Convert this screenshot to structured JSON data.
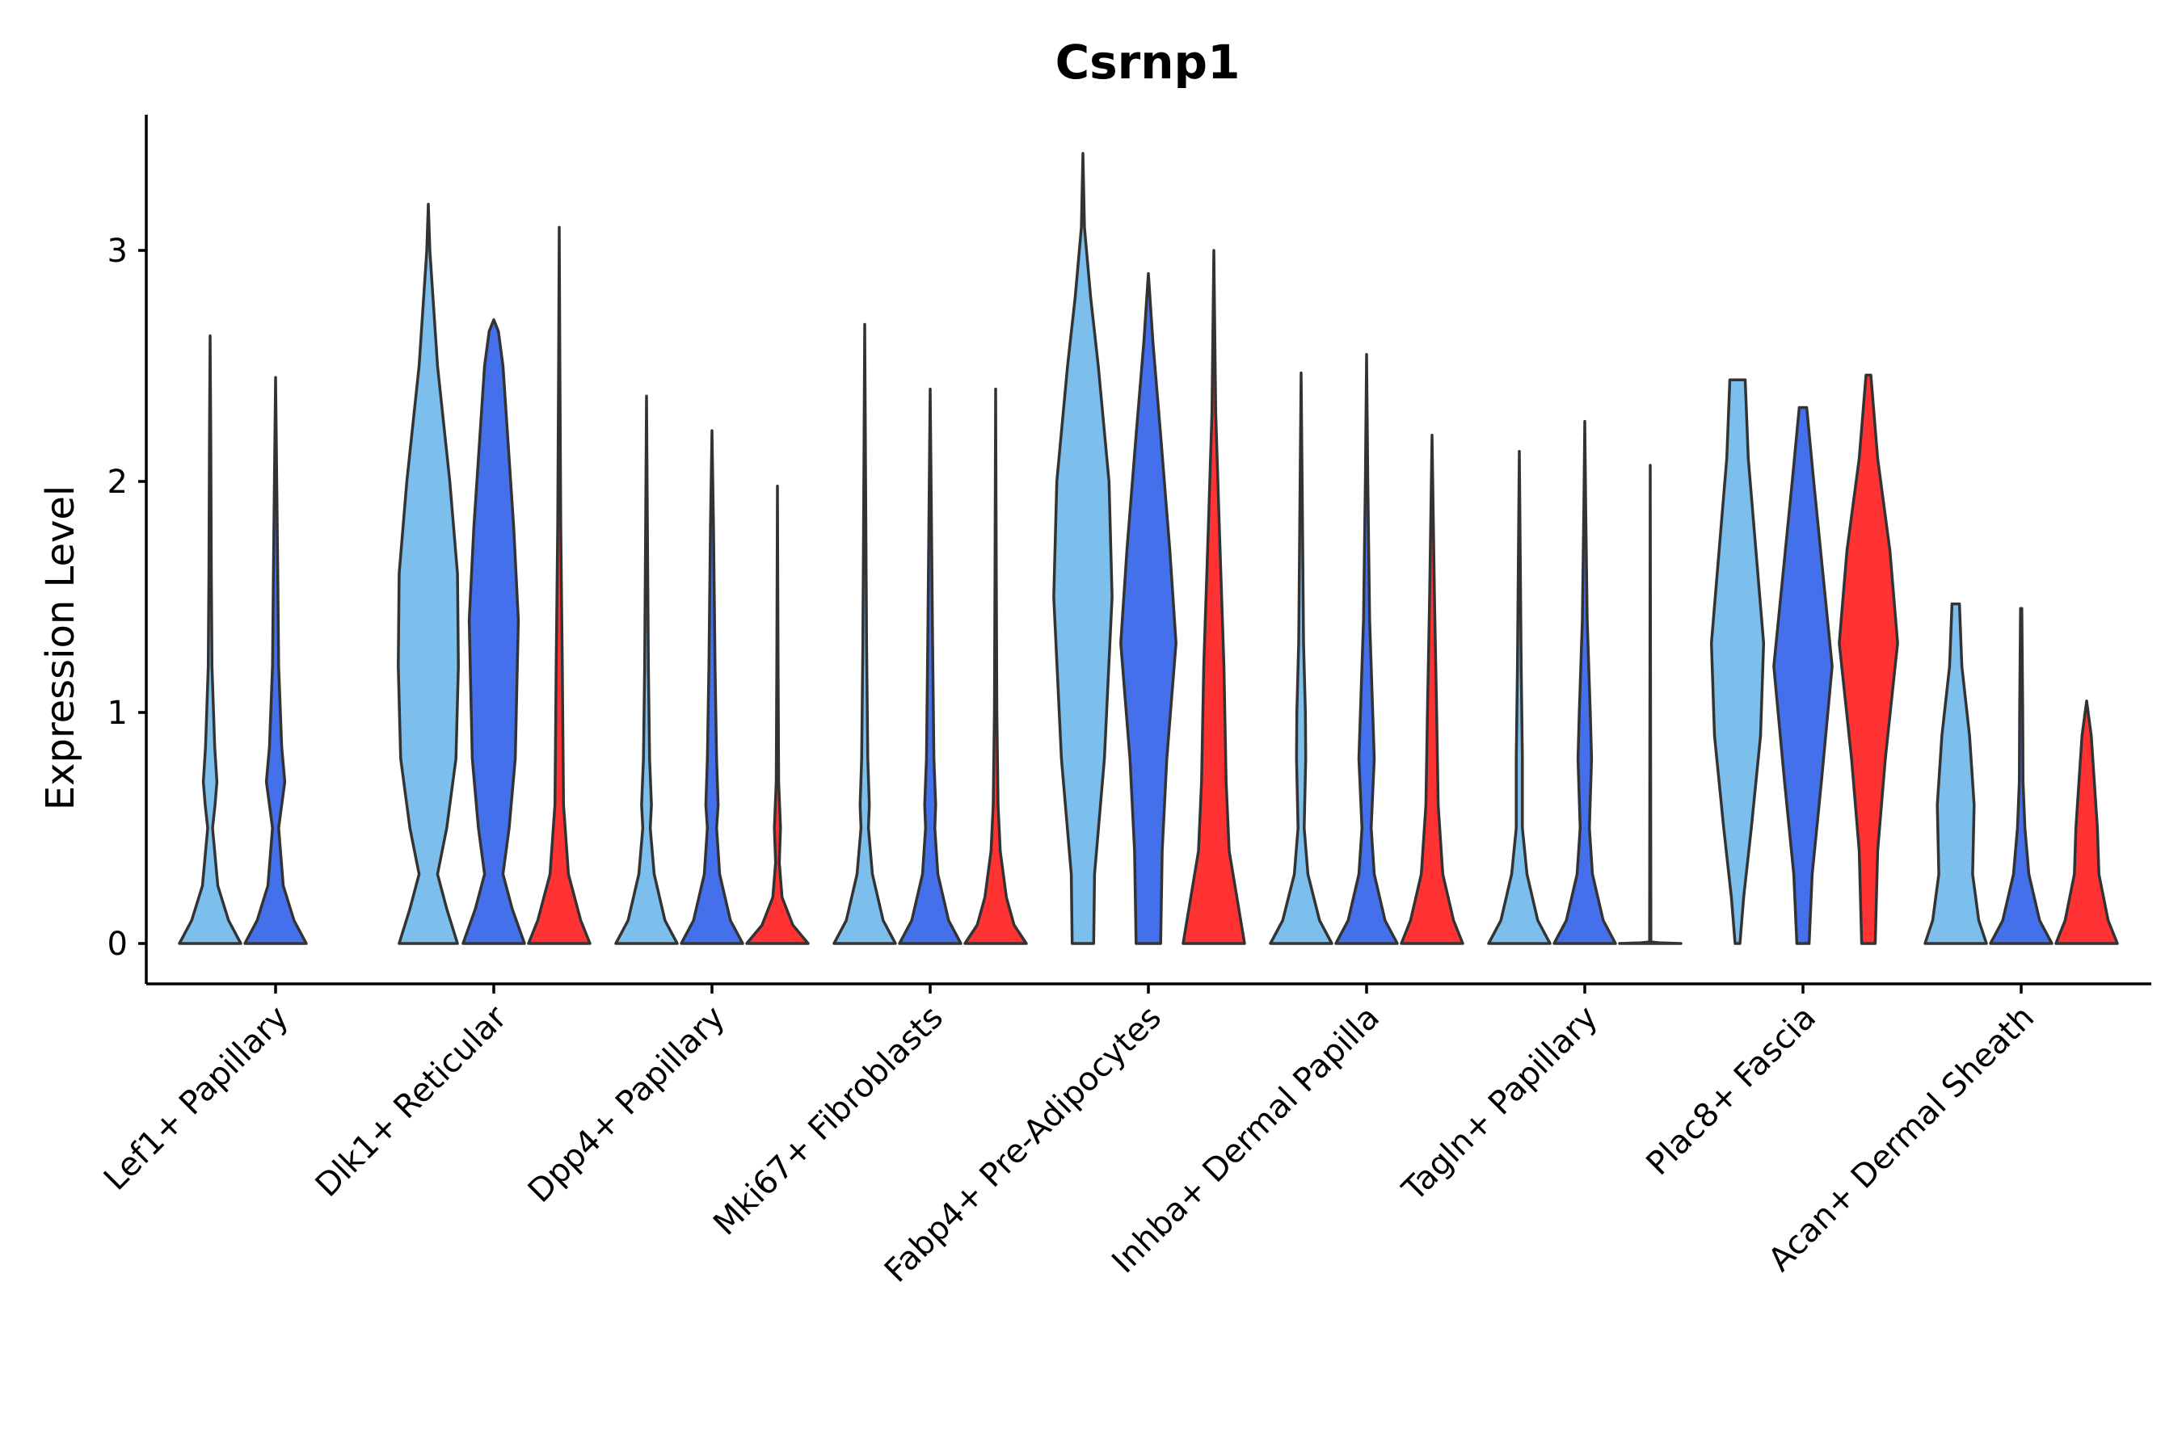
{
  "chart_data": {
    "type": "violin",
    "title": "Csrnp1",
    "xlabel": "",
    "ylabel": "Expression Level",
    "ylim": [
      -0.17,
      3.6
    ],
    "yticks": [
      0,
      1,
      2,
      3
    ],
    "grid": false,
    "legend": "none",
    "colors": {
      "sample_1": "#7dbfec",
      "sample_2": "#4470ec",
      "sample_3": "#ff3333",
      "outline": "#333333"
    },
    "categories": [
      "Lef1+ Papillary",
      "Dlk1+ Reticular",
      "Dpp4+ Papillary",
      "Mki67+ Fibroblasts",
      "Fabp4+ Pre-Adipocytes",
      "Inhba+ Dermal Papilla",
      "Tagln+ Papillary",
      "Plac8+ Fascia",
      "Acan+ Dermal Sheath"
    ],
    "violins": [
      {
        "category": "Lef1+ Papillary",
        "series": 1,
        "max": 2.63,
        "profile": [
          [
            0,
            1.0
          ],
          [
            0.1,
            0.6
          ],
          [
            0.25,
            0.25
          ],
          [
            0.5,
            0.08
          ],
          [
            0.6,
            0.16
          ],
          [
            0.7,
            0.22
          ],
          [
            0.85,
            0.15
          ],
          [
            1.2,
            0.06
          ],
          [
            1.6,
            0.04
          ],
          [
            2.2,
            0.02
          ],
          [
            2.63,
            0
          ]
        ]
      },
      {
        "category": "Lef1+ Papillary",
        "series": 2,
        "max": 2.45,
        "profile": [
          [
            0,
            1.0
          ],
          [
            0.1,
            0.6
          ],
          [
            0.25,
            0.25
          ],
          [
            0.5,
            0.1
          ],
          [
            0.6,
            0.2
          ],
          [
            0.7,
            0.3
          ],
          [
            0.85,
            0.2
          ],
          [
            1.2,
            0.1
          ],
          [
            1.6,
            0.07
          ],
          [
            2.2,
            0.02
          ],
          [
            2.45,
            0
          ]
        ]
      },
      {
        "category": "Dlk1+ Reticular",
        "series": 1,
        "max": 3.2,
        "profile": [
          [
            0,
            0.95
          ],
          [
            0.15,
            0.6
          ],
          [
            0.3,
            0.3
          ],
          [
            0.5,
            0.6
          ],
          [
            0.8,
            0.9
          ],
          [
            1.2,
            0.98
          ],
          [
            1.6,
            0.95
          ],
          [
            2.0,
            0.7
          ],
          [
            2.5,
            0.3
          ],
          [
            3.0,
            0.05
          ],
          [
            3.2,
            0
          ]
        ]
      },
      {
        "category": "Dlk1+ Reticular",
        "series": 2,
        "max": 2.7,
        "profile": [
          [
            0,
            1.0
          ],
          [
            0.15,
            0.6
          ],
          [
            0.3,
            0.3
          ],
          [
            0.5,
            0.5
          ],
          [
            0.8,
            0.7
          ],
          [
            1.4,
            0.8
          ],
          [
            1.8,
            0.65
          ],
          [
            2.2,
            0.45
          ],
          [
            2.5,
            0.3
          ],
          [
            2.65,
            0.15
          ],
          [
            2.7,
            0
          ]
        ]
      },
      {
        "category": "Dlk1+ Reticular",
        "series": 3,
        "max": 3.1,
        "profile": [
          [
            0,
            1.0
          ],
          [
            0.1,
            0.7
          ],
          [
            0.3,
            0.3
          ],
          [
            0.6,
            0.14
          ],
          [
            1.2,
            0.1
          ],
          [
            1.8,
            0.05
          ],
          [
            2.5,
            0.02
          ],
          [
            3.1,
            0
          ]
        ]
      },
      {
        "category": "Dpp4+ Papillary",
        "series": 1,
        "max": 2.37,
        "profile": [
          [
            0,
            1.0
          ],
          [
            0.1,
            0.6
          ],
          [
            0.3,
            0.25
          ],
          [
            0.5,
            0.12
          ],
          [
            0.6,
            0.16
          ],
          [
            0.8,
            0.1
          ],
          [
            1.2,
            0.06
          ],
          [
            1.8,
            0.03
          ],
          [
            2.37,
            0
          ]
        ]
      },
      {
        "category": "Dpp4+ Papillary",
        "series": 2,
        "max": 2.22,
        "profile": [
          [
            0,
            1.0
          ],
          [
            0.1,
            0.6
          ],
          [
            0.3,
            0.25
          ],
          [
            0.5,
            0.15
          ],
          [
            0.6,
            0.2
          ],
          [
            0.8,
            0.15
          ],
          [
            1.2,
            0.1
          ],
          [
            1.8,
            0.05
          ],
          [
            2.22,
            0
          ]
        ]
      },
      {
        "category": "Dpp4+ Papillary",
        "series": 3,
        "max": 1.98,
        "profile": [
          [
            0,
            1.0
          ],
          [
            0.08,
            0.5
          ],
          [
            0.2,
            0.15
          ],
          [
            0.35,
            0.06
          ],
          [
            0.5,
            0.1
          ],
          [
            0.7,
            0.04
          ],
          [
            1.2,
            0.02
          ],
          [
            1.98,
            0
          ]
        ]
      },
      {
        "category": "Mki67+ Fibroblasts",
        "series": 1,
        "max": 2.68,
        "profile": [
          [
            0,
            1.0
          ],
          [
            0.1,
            0.6
          ],
          [
            0.3,
            0.25
          ],
          [
            0.5,
            0.12
          ],
          [
            0.6,
            0.15
          ],
          [
            0.8,
            0.1
          ],
          [
            1.3,
            0.06
          ],
          [
            2.0,
            0.03
          ],
          [
            2.68,
            0
          ]
        ]
      },
      {
        "category": "Mki67+ Fibroblasts",
        "series": 2,
        "max": 2.4,
        "profile": [
          [
            0,
            1.0
          ],
          [
            0.1,
            0.6
          ],
          [
            0.3,
            0.25
          ],
          [
            0.5,
            0.15
          ],
          [
            0.6,
            0.18
          ],
          [
            0.8,
            0.12
          ],
          [
            1.3,
            0.08
          ],
          [
            2.0,
            0.03
          ],
          [
            2.4,
            0
          ]
        ]
      },
      {
        "category": "Mki67+ Fibroblasts",
        "series": 3,
        "max": 2.4,
        "profile": [
          [
            0,
            1.0
          ],
          [
            0.08,
            0.6
          ],
          [
            0.2,
            0.35
          ],
          [
            0.4,
            0.15
          ],
          [
            0.6,
            0.08
          ],
          [
            1.0,
            0.04
          ],
          [
            1.6,
            0.02
          ],
          [
            2.4,
            0
          ]
        ]
      },
      {
        "category": "Fabp4+ Pre-Adipocytes",
        "series": 1,
        "max": 3.42,
        "profile": [
          [
            0,
            0.35
          ],
          [
            0.3,
            0.38
          ],
          [
            0.8,
            0.7
          ],
          [
            1.5,
            0.95
          ],
          [
            2.0,
            0.85
          ],
          [
            2.5,
            0.5
          ],
          [
            2.8,
            0.25
          ],
          [
            3.1,
            0.05
          ],
          [
            3.42,
            0
          ]
        ]
      },
      {
        "category": "Fabp4+ Pre-Adipocytes",
        "series": 2,
        "max": 2.9,
        "profile": [
          [
            0,
            0.4
          ],
          [
            0.4,
            0.45
          ],
          [
            0.8,
            0.6
          ],
          [
            1.3,
            0.9
          ],
          [
            1.7,
            0.7
          ],
          [
            2.2,
            0.4
          ],
          [
            2.6,
            0.15
          ],
          [
            2.9,
            0
          ]
        ]
      },
      {
        "category": "Fabp4+ Pre-Adipocytes",
        "series": 3,
        "max": 3.0,
        "profile": [
          [
            0,
            1.0
          ],
          [
            0.2,
            0.75
          ],
          [
            0.4,
            0.5
          ],
          [
            0.7,
            0.4
          ],
          [
            1.2,
            0.33
          ],
          [
            1.8,
            0.18
          ],
          [
            2.3,
            0.06
          ],
          [
            3.0,
            0
          ]
        ]
      },
      {
        "category": "Inhba+ Dermal Papilla",
        "series": 1,
        "max": 2.47,
        "profile": [
          [
            0,
            1.0
          ],
          [
            0.1,
            0.6
          ],
          [
            0.3,
            0.22
          ],
          [
            0.5,
            0.1
          ],
          [
            0.8,
            0.15
          ],
          [
            1.0,
            0.14
          ],
          [
            1.3,
            0.08
          ],
          [
            1.9,
            0.04
          ],
          [
            2.47,
            0
          ]
        ]
      },
      {
        "category": "Inhba+ Dermal Papilla",
        "series": 2,
        "max": 2.55,
        "profile": [
          [
            0,
            1.0
          ],
          [
            0.1,
            0.6
          ],
          [
            0.3,
            0.25
          ],
          [
            0.5,
            0.15
          ],
          [
            0.8,
            0.25
          ],
          [
            1.0,
            0.2
          ],
          [
            1.4,
            0.1
          ],
          [
            2.0,
            0.04
          ],
          [
            2.55,
            0
          ]
        ]
      },
      {
        "category": "Inhba+ Dermal Papilla",
        "series": 3,
        "max": 2.2,
        "profile": [
          [
            0,
            1.0
          ],
          [
            0.1,
            0.7
          ],
          [
            0.3,
            0.35
          ],
          [
            0.6,
            0.2
          ],
          [
            1.0,
            0.15
          ],
          [
            1.5,
            0.08
          ],
          [
            2.2,
            0
          ]
        ]
      },
      {
        "category": "Tagln+ Papillary",
        "series": 1,
        "max": 2.13,
        "profile": [
          [
            0,
            1.0
          ],
          [
            0.1,
            0.6
          ],
          [
            0.3,
            0.25
          ],
          [
            0.5,
            0.1
          ],
          [
            0.8,
            0.1
          ],
          [
            1.2,
            0.06
          ],
          [
            1.7,
            0.03
          ],
          [
            2.13,
            0
          ]
        ]
      },
      {
        "category": "Tagln+ Papillary",
        "series": 2,
        "max": 2.26,
        "profile": [
          [
            0,
            1.0
          ],
          [
            0.1,
            0.6
          ],
          [
            0.3,
            0.25
          ],
          [
            0.5,
            0.15
          ],
          [
            0.8,
            0.22
          ],
          [
            1.0,
            0.18
          ],
          [
            1.4,
            0.08
          ],
          [
            1.9,
            0.03
          ],
          [
            2.26,
            0
          ]
        ]
      },
      {
        "category": "Tagln+ Papillary",
        "series": 3,
        "max": 2.07,
        "profile": [
          [
            0,
            1.0
          ],
          [
            0.003,
            0.3
          ],
          [
            0.007,
            0.02
          ],
          [
            2.07,
            0
          ]
        ]
      },
      {
        "category": "Plac8+ Fascia",
        "series": 1,
        "max": 2.44,
        "profile": [
          [
            0,
            0.08
          ],
          [
            0.2,
            0.2
          ],
          [
            0.5,
            0.45
          ],
          [
            0.9,
            0.75
          ],
          [
            1.3,
            0.85
          ],
          [
            1.7,
            0.6
          ],
          [
            2.1,
            0.35
          ],
          [
            2.44,
            0.25
          ]
        ]
      },
      {
        "category": "Plac8+ Fascia",
        "series": 2,
        "max": 2.32,
        "profile": [
          [
            0,
            0.2
          ],
          [
            0.3,
            0.3
          ],
          [
            0.7,
            0.6
          ],
          [
            1.2,
            0.95
          ],
          [
            1.6,
            0.65
          ],
          [
            2.0,
            0.35
          ],
          [
            2.32,
            0.12
          ]
        ]
      },
      {
        "category": "Plac8+ Fascia",
        "series": 3,
        "max": 2.46,
        "profile": [
          [
            0,
            0.22
          ],
          [
            0.4,
            0.3
          ],
          [
            0.8,
            0.55
          ],
          [
            1.3,
            0.95
          ],
          [
            1.7,
            0.7
          ],
          [
            2.1,
            0.3
          ],
          [
            2.46,
            0.08
          ]
        ]
      },
      {
        "category": "Acan+ Dermal Sheath",
        "series": 1,
        "max": 1.47,
        "profile": [
          [
            0,
            1.0
          ],
          [
            0.1,
            0.75
          ],
          [
            0.3,
            0.55
          ],
          [
            0.6,
            0.6
          ],
          [
            0.9,
            0.45
          ],
          [
            1.2,
            0.2
          ],
          [
            1.47,
            0.12
          ]
        ]
      },
      {
        "category": "Acan+ Dermal Sheath",
        "series": 2,
        "max": 1.45,
        "profile": [
          [
            0,
            1.0
          ],
          [
            0.1,
            0.6
          ],
          [
            0.3,
            0.25
          ],
          [
            0.5,
            0.12
          ],
          [
            0.7,
            0.06
          ],
          [
            1.0,
            0.05
          ],
          [
            1.45,
            0.02
          ]
        ]
      },
      {
        "category": "Acan+ Dermal Sheath",
        "series": 3,
        "max": 1.05,
        "profile": [
          [
            0,
            1.0
          ],
          [
            0.1,
            0.7
          ],
          [
            0.3,
            0.4
          ],
          [
            0.5,
            0.35
          ],
          [
            0.7,
            0.25
          ],
          [
            0.9,
            0.15
          ],
          [
            1.05,
            0
          ]
        ]
      }
    ]
  }
}
